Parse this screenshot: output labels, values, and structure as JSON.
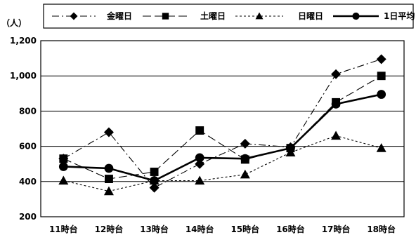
{
  "chart_data": {
    "type": "line",
    "categories": [
      "11時台",
      "12時台",
      "13時台",
      "14時台",
      "15時台",
      "16時台",
      "17時台",
      "18時台"
    ],
    "ylabel": "（人）",
    "ylim": [
      200,
      1200
    ],
    "yticks": [
      200,
      400,
      600,
      800,
      1000,
      1200
    ],
    "ytick_labels": [
      "200",
      "400",
      "600",
      "800",
      "1,000",
      "1,200"
    ],
    "grid": true,
    "legend_position": "top",
    "series": [
      {
        "name": "金曜日",
        "marker": "diamond",
        "dash": "dashdot",
        "color": "#000000",
        "values": [
          530,
          680,
          365,
          500,
          615,
          595,
          1010,
          1095
        ]
      },
      {
        "name": "土曜日",
        "marker": "square",
        "dash": "longdash",
        "color": "#000000",
        "values": [
          530,
          415,
          455,
          690,
          525,
          590,
          850,
          1000
        ]
      },
      {
        "name": "日曜日",
        "marker": "triangle",
        "dash": "dotted",
        "color": "#000000",
        "values": [
          405,
          345,
          405,
          405,
          440,
          565,
          660,
          590
        ]
      },
      {
        "name": "1日平均",
        "marker": "circle",
        "dash": "solid",
        "color": "#000000",
        "values": [
          485,
          475,
          405,
          535,
          530,
          590,
          840,
          895
        ]
      }
    ]
  }
}
